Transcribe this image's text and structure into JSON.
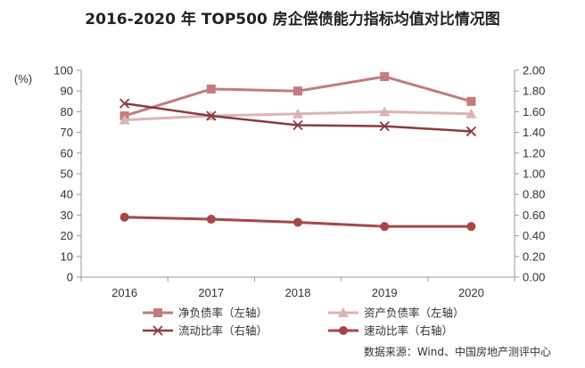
{
  "chart_data": {
    "type": "line",
    "title": "2016-2020 年 TOP500 房企偿债能力指标均值对比情况图",
    "y_left_unit": "(%)",
    "categories": [
      "2016",
      "2017",
      "2018",
      "2019",
      "2020"
    ],
    "y_left_ticks": [
      "0",
      "10",
      "20",
      "30",
      "40",
      "50",
      "60",
      "70",
      "80",
      "90",
      "100"
    ],
    "y_right_ticks": [
      "0.00",
      "0.20",
      "0.40",
      "0.60",
      "0.80",
      "1.00",
      "1.20",
      "1.40",
      "1.60",
      "1.80",
      "2.00"
    ],
    "y_left_range": [
      0,
      100
    ],
    "y_right_range": [
      0,
      2
    ],
    "grid": false,
    "legend_position": "bottom",
    "series": [
      {
        "name": "净负债率（左轴）",
        "axis": "left",
        "marker": "square",
        "color": "#c47b7b",
        "width": 3,
        "values": [
          78,
          91,
          90,
          97,
          85
        ]
      },
      {
        "name": "资产负债率（左轴）",
        "axis": "left",
        "marker": "triangle",
        "color": "#dbb5b1",
        "width": 3,
        "values": [
          76,
          78,
          79,
          80,
          79
        ]
      },
      {
        "name": "流动比率（右轴）",
        "axis": "right",
        "marker": "cross",
        "color": "#8c3a3d",
        "width": 2.5,
        "values": [
          1.68,
          1.56,
          1.47,
          1.46,
          1.41
        ]
      },
      {
        "name": "速动比率（右轴）",
        "axis": "right",
        "marker": "circle",
        "color": "#a8474a",
        "width": 3,
        "values": [
          0.58,
          0.56,
          0.53,
          0.49,
          0.49
        ]
      }
    ],
    "source": "数据来源：Wind、中国房地产测评中心"
  }
}
